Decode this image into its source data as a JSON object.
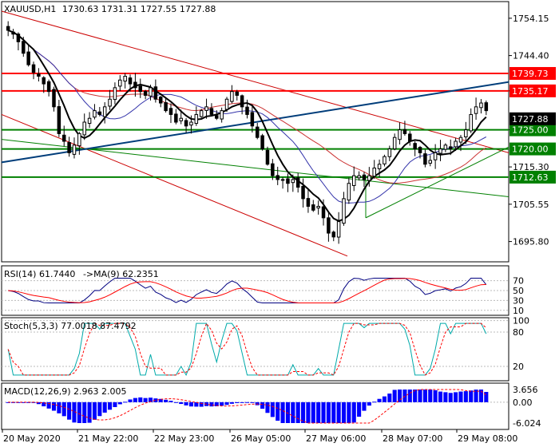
{
  "header": {
    "symbol": "XAUUSD,H1",
    "ohlc": "1730.63 1731.31 1727.55 1727.88"
  },
  "panes": {
    "rsi_label": "RSI(14) 61.7440",
    "rsi_ma_label": "->MA(9) 62.2351",
    "stoch_label": "Stoch(5,3,3) 77.0018 87.4792",
    "macd_label": "MACD(12,26,9) 2.963 2.005"
  },
  "colors": {
    "bull": "#ffffff",
    "bear": "#000000",
    "support_line": "#008000",
    "resistance_line": "#ff0000",
    "trend_line": "#003d7a",
    "channel_line": "#cc0000",
    "price_tag": "#000000",
    "macd_bar": "#0000ff",
    "signal_line": "#ff0000",
    "rsi_line": "#000080",
    "rsi_ma_line": "#ff0000",
    "stoch_main": "#00aaaa",
    "stoch_signal": "#ff0000"
  },
  "chart_data": {
    "type": "candlestick",
    "y_ticks": [
      1754.15,
      1744.4,
      1735.17,
      1725.0,
      1715.3,
      1705.55,
      1695.8
    ],
    "y_range": [
      1690.5,
      1758.5
    ],
    "x_labels": [
      "20 May 2020",
      "21 May 22:00",
      "22 May 23:00",
      "26 May 05:00",
      "27 May 06:00",
      "28 May 07:00",
      "29 May 08:00"
    ],
    "current_price": "1727.88",
    "levels": [
      {
        "value": 1739.73,
        "label": "1739.73",
        "kind": "resistance"
      },
      {
        "value": 1735.17,
        "label": "1735.17",
        "kind": "resistance"
      },
      {
        "value": 1725.0,
        "label": "1725.00",
        "kind": "support"
      },
      {
        "value": 1720.0,
        "label": "1720.00",
        "kind": "support"
      },
      {
        "value": 1712.63,
        "label": "1712.63",
        "kind": "support"
      }
    ],
    "close_path": [
      1751,
      1750,
      1748,
      1745,
      1742,
      1740,
      1739,
      1737,
      1735,
      1731,
      1724,
      1722,
      1719,
      1721,
      1724,
      1727,
      1728,
      1730,
      1729,
      1731,
      1733,
      1736,
      1738,
      1739,
      1737,
      1736,
      1735,
      1734,
      1736,
      1733,
      1732,
      1730,
      1729,
      1727,
      1728,
      1726,
      1727,
      1729,
      1730,
      1731,
      1729,
      1728,
      1730,
      1733,
      1735,
      1734,
      1731,
      1729,
      1726,
      1723,
      1720,
      1716,
      1713,
      1712,
      1712,
      1711,
      1712,
      1710,
      1707,
      1705,
      1704,
      1705,
      1702,
      1698,
      1697,
      1701,
      1707,
      1711,
      1713,
      1713,
      1712,
      1713,
      1715,
      1716,
      1718,
      1720,
      1723,
      1725,
      1724,
      1722,
      1720,
      1719,
      1716,
      1717,
      1719,
      1720,
      1721,
      1720,
      1722,
      1723,
      1725,
      1729,
      1731,
      1732,
      1730
    ],
    "rsi": {
      "levels": [
        70,
        50,
        30,
        10
      ],
      "last": 61.744,
      "ma_last": 62.2351
    },
    "stoch": {
      "levels": [
        100,
        80,
        20
      ],
      "main_last": 77.0018,
      "signal_last": 87.4792
    },
    "macd": {
      "ticks": [
        "3.656",
        "0.00",
        "-6.024"
      ],
      "macd_last": 2.963,
      "signal_last": 2.005
    }
  }
}
